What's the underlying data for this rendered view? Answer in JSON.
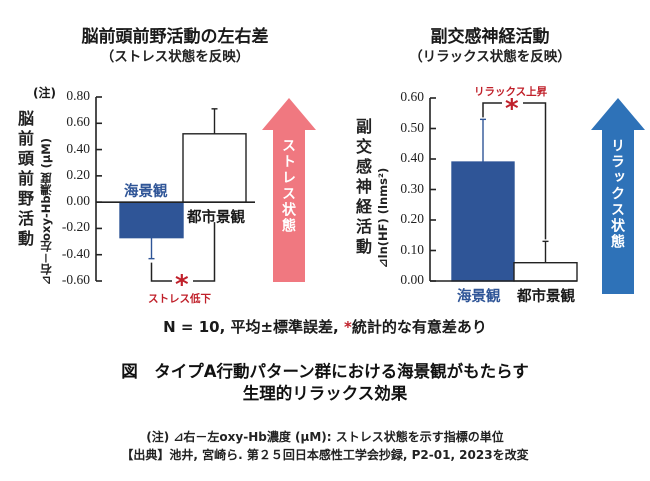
{
  "chart_data": [
    {
      "type": "bar",
      "title": "脳前頭前野活動の左右差",
      "subtitle": "（ストレス状態を反映）",
      "ylabel": "脳前頭前野活動",
      "yunit": "⊿右－左oxy-Hb濃度 (μM)",
      "ynote": "(注)",
      "ylim": [
        -0.6,
        0.8
      ],
      "yticks": [
        "0.80",
        "0.60",
        "0.40",
        "0.20",
        "0.00",
        "-0.20",
        "-0.40",
        "-0.60"
      ],
      "ytick_values": [
        0.8,
        0.6,
        0.4,
        0.2,
        0.0,
        -0.2,
        -0.4,
        -0.6
      ],
      "categories": [
        "海景観",
        "都市景観"
      ],
      "values": [
        -0.27,
        0.52
      ],
      "errors": [
        0.16,
        0.19
      ],
      "bar_colors": [
        "#2f5597",
        "#ffffff"
      ],
      "significance": {
        "marker": "*",
        "label": "ストレス低下"
      },
      "arrow": {
        "label": "ストレス状態",
        "color": "#f07880",
        "direction": "up"
      },
      "grid": false
    },
    {
      "type": "bar",
      "title": "副交感神経活動",
      "subtitle": "（リラックス状態を反映）",
      "ylabel": "副交感神経活動",
      "yunit": "⊿ln(HF) (lnms²)",
      "ylim": [
        0.0,
        0.6
      ],
      "yticks": [
        "0.60",
        "0.50",
        "0.40",
        "0.30",
        "0.20",
        "0.10",
        "0.00"
      ],
      "ytick_values": [
        0.6,
        0.5,
        0.4,
        0.3,
        0.2,
        0.1,
        0.0
      ],
      "categories": [
        "海景観",
        "都市景観"
      ],
      "values": [
        0.39,
        0.06
      ],
      "errors": [
        0.14,
        0.07
      ],
      "bar_colors": [
        "#2f5597",
        "#ffffff"
      ],
      "significance": {
        "marker": "*",
        "label": "リラックス上昇"
      },
      "arrow": {
        "label": "リラックス状態",
        "color": "#2e72b8",
        "direction": "up"
      },
      "grid": false
    }
  ],
  "footnote": {
    "stats_prefix": "N = 10, 平均±標準誤差, ",
    "stats_star": "*",
    "stats_suffix": "統計的な有意差あり"
  },
  "figure_caption": {
    "line1": "図　タイプA行動パターン群における海景観がもたらす",
    "line2": "生理的リラックス効果"
  },
  "notes": {
    "unit_note": "(注) ⊿右－左oxy-Hb濃度 (μM): ストレス状態を示す指標の単位",
    "source": "【出典】池井, 宮崎ら. 第２５回日本感性工学会抄録, P2-01, 2023を改変"
  },
  "colors": {
    "seascape_bar": "#2f5597",
    "significance_red": "#c0202a",
    "stress_arrow": "#f07880",
    "relax_arrow": "#2e72b8"
  }
}
